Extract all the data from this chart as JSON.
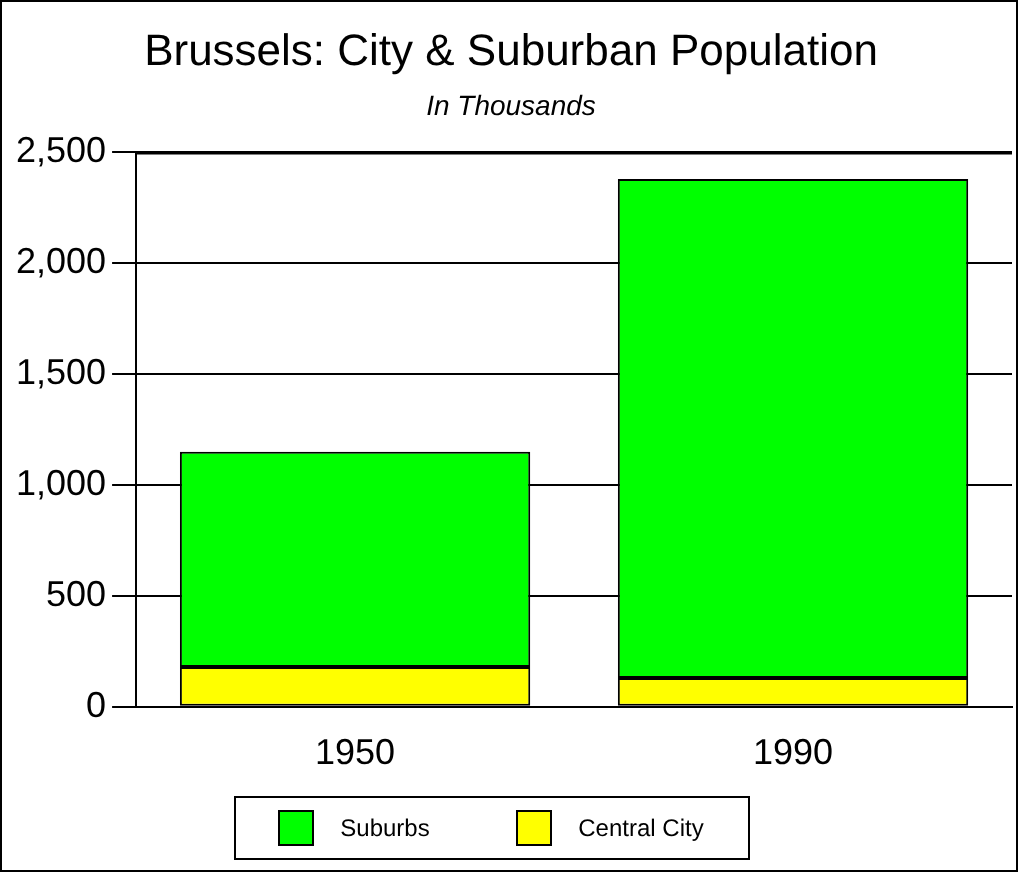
{
  "chart_data": {
    "type": "bar",
    "title": "Brussels: City & Suburban Population",
    "subtitle": "In Thousands",
    "categories": [
      "1950",
      "1990"
    ],
    "stacked": true,
    "series": [
      {
        "name": "Central City",
        "color": "#ffff00",
        "values": [
          180,
          130
        ]
      },
      {
        "name": "Suburbs",
        "color": "#00ff00",
        "values": [
          970,
          2250
        ]
      }
    ],
    "ylim": [
      0,
      2500
    ],
    "yticks": [
      0,
      500,
      {
        "value": 1000,
        "label": "1,000"
      },
      {
        "value": 1500,
        "label": "1,500"
      },
      {
        "value": 2000,
        "label": "2,000"
      },
      {
        "value": 2500,
        "label": "2,500"
      }
    ],
    "grid": "y",
    "legend": "bottom"
  }
}
